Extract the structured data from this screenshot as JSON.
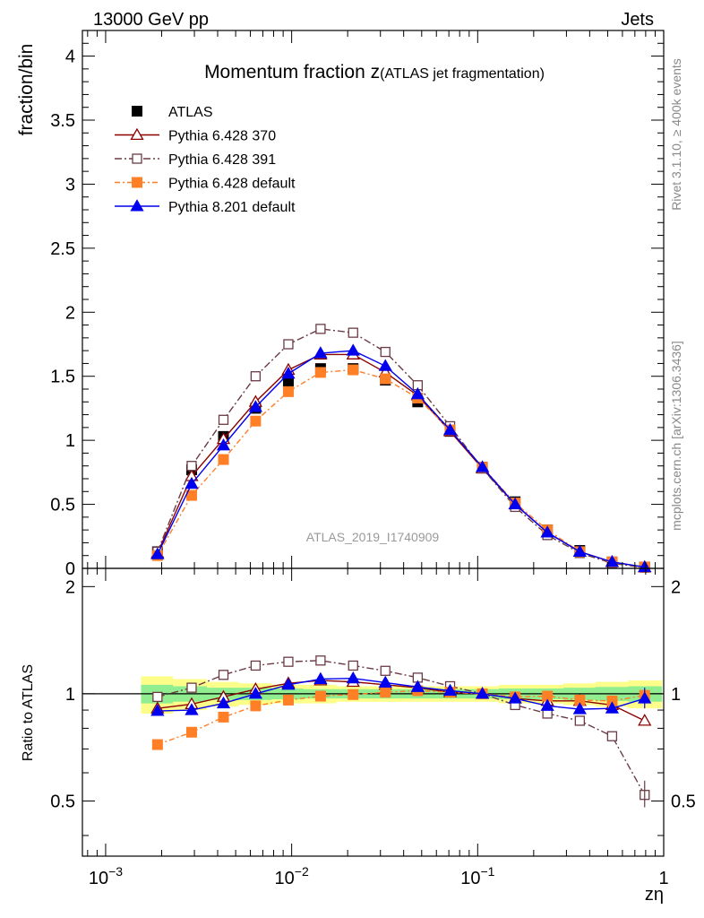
{
  "header": {
    "energy_label": "13000 GeV pp",
    "process_label": "Jets",
    "title_main": "Momentum fraction z",
    "title_sub": "(ATLAS jet fragmentation)",
    "analysis_id": "ATLAS_2019_I1740909",
    "rivet_label": "Rivet 3.1.10, ≥ 400k events",
    "mcplots_label": "mcplots.cern.ch [arXiv:1306.3436]"
  },
  "axes": {
    "ylabel_main": "fraction/bin",
    "ylabel_ratio": "Ratio to ATLAS",
    "xlabel": "zη"
  },
  "chart_data": {
    "type": "line",
    "x_scale": "log",
    "xlim": [
      0.00075,
      1.0
    ],
    "ylim_main": [
      0,
      4.2
    ],
    "ylim_ratio": [
      0.35,
      2.25
    ],
    "x_ticks_major": [
      {
        "value": 0.001,
        "base": "10",
        "exp": "−3"
      },
      {
        "value": 0.01,
        "base": "10",
        "exp": "−2"
      },
      {
        "value": 0.1,
        "base": "10",
        "exp": "−1"
      },
      {
        "value": 1,
        "base": "1",
        "exp": ""
      }
    ],
    "y_ticks_main": [
      {
        "value": 0,
        "label": "0"
      },
      {
        "value": 0.5,
        "label": "0.5"
      },
      {
        "value": 1,
        "label": "1"
      },
      {
        "value": 1.5,
        "label": "1.5"
      },
      {
        "value": 2,
        "label": "2"
      },
      {
        "value": 2.5,
        "label": "2.5"
      },
      {
        "value": 3,
        "label": "3"
      },
      {
        "value": 3.5,
        "label": "3.5"
      },
      {
        "value": 4,
        "label": "4"
      }
    ],
    "y_ticks_ratio": [
      {
        "value": 0.5,
        "label": "0.5"
      },
      {
        "value": 1,
        "label": "1"
      },
      {
        "value": 2,
        "label": "2"
      }
    ],
    "x": [
      0.0019,
      0.0029,
      0.0043,
      0.0064,
      0.0096,
      0.0143,
      0.0214,
      0.0319,
      0.0476,
      0.0711,
      0.106,
      0.159,
      0.237,
      0.354,
      0.528,
      0.79
    ],
    "x_edges": [
      0.00155,
      0.0023,
      0.0035,
      0.0052,
      0.0078,
      0.0116,
      0.0174,
      0.026,
      0.0388,
      0.058,
      0.0867,
      0.13,
      0.193,
      0.289,
      0.43,
      0.643,
      0.98
    ],
    "band_outer": [
      0.12,
      0.1,
      0.08,
      0.07,
      0.06,
      0.06,
      0.05,
      0.05,
      0.05,
      0.05,
      0.05,
      0.06,
      0.06,
      0.07,
      0.08,
      0.09
    ],
    "band_inner": [
      0.06,
      0.05,
      0.04,
      0.04,
      0.035,
      0.03,
      0.03,
      0.03,
      0.03,
      0.03,
      0.03,
      0.035,
      0.035,
      0.04,
      0.045,
      0.05
    ],
    "reference": {
      "name": "ATLAS",
      "color": "#000000",
      "marker": "filled-square",
      "values": [
        0.13,
        0.77,
        1.03,
        1.25,
        1.45,
        1.56,
        1.56,
        1.47,
        1.3,
        1.07,
        0.79,
        0.52,
        0.3,
        0.14,
        0.05,
        0.01
      ]
    },
    "series": [
      {
        "name": "Pythia 6.428 370",
        "color": "#8b0000",
        "marker": "open-triangle",
        "dash": "",
        "values": [
          0.12,
          0.72,
          1.01,
          1.3,
          1.55,
          1.67,
          1.67,
          1.53,
          1.35,
          1.07,
          0.78,
          0.5,
          0.28,
          0.13,
          0.05,
          0.0084
        ],
        "ratio": [
          0.91,
          0.935,
          0.98,
          1.03,
          1.07,
          1.09,
          1.08,
          1.06,
          1.04,
          1.01,
          1.0,
          0.97,
          0.955,
          0.955,
          0.93,
          0.84
        ]
      },
      {
        "name": "Pythia 6.428 391",
        "color": "#6b3b45",
        "marker": "open-square",
        "dash": "8,3,2,3",
        "values": [
          0.13,
          0.8,
          1.16,
          1.5,
          1.75,
          1.87,
          1.84,
          1.69,
          1.43,
          1.11,
          0.78,
          0.48,
          0.26,
          0.12,
          0.04,
          0.0052
        ],
        "ratio": [
          0.98,
          1.04,
          1.13,
          1.2,
          1.23,
          1.24,
          1.2,
          1.16,
          1.11,
          1.05,
          1.0,
          0.93,
          0.88,
          0.84,
          0.76,
          0.52
        ]
      },
      {
        "name": "Pythia 6.428 default",
        "color": "#ff7f27",
        "marker": "filled-square",
        "dash": "6,3,2,3",
        "values": [
          0.1,
          0.57,
          0.85,
          1.15,
          1.38,
          1.53,
          1.55,
          1.48,
          1.33,
          1.08,
          0.79,
          0.51,
          0.3,
          0.13,
          0.05,
          0.0099
        ],
        "ratio": [
          0.72,
          0.78,
          0.86,
          0.925,
          0.96,
          0.985,
          0.995,
          1.01,
          1.02,
          1.01,
          1.0,
          0.98,
          0.985,
          0.96,
          0.955,
          0.99
        ]
      },
      {
        "name": "Pythia 8.201 default",
        "color": "#0000ee",
        "marker": "filled-triangle",
        "dash": "",
        "values": [
          0.11,
          0.66,
          0.96,
          1.26,
          1.52,
          1.68,
          1.7,
          1.58,
          1.36,
          1.08,
          0.79,
          0.5,
          0.28,
          0.13,
          0.05,
          0.0097
        ],
        "ratio": [
          0.895,
          0.9,
          0.94,
          1.0,
          1.06,
          1.1,
          1.105,
          1.075,
          1.045,
          1.02,
          1.0,
          0.97,
          0.925,
          0.905,
          0.91,
          0.97
        ]
      }
    ]
  }
}
